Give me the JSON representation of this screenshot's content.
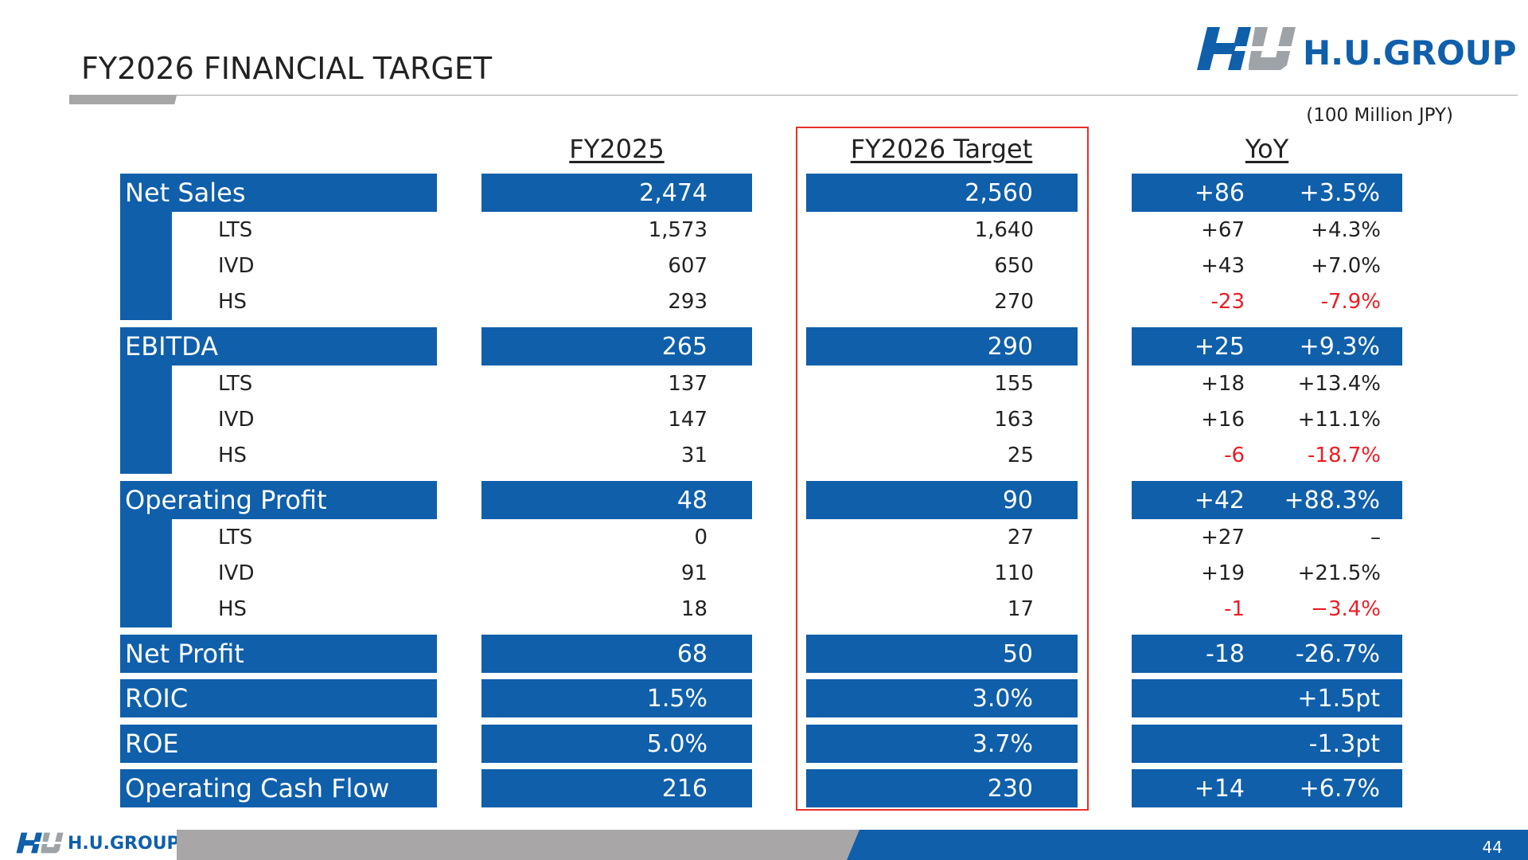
{
  "title": "FY2026 FINANCIAL TARGET",
  "logo_text": "H.U.GROUP",
  "unit_note": "(100 Million JPY)",
  "columns": {
    "fy2025": "FY2025",
    "fy2026": "FY2026 Target",
    "yoy": "YoY"
  },
  "rows": {
    "net_sales": {
      "label": "Net Sales",
      "fy2025": "2,474",
      "fy2026": "2,560",
      "yoy_abs": "+86",
      "yoy_pct": "+3.5%"
    },
    "ns_lts": {
      "label": "LTS",
      "fy2025": "1,573",
      "fy2026": "1,640",
      "yoy_abs": "+67",
      "yoy_pct": "+4.3%"
    },
    "ns_ivd": {
      "label": "IVD",
      "fy2025": "607",
      "fy2026": "650",
      "yoy_abs": "+43",
      "yoy_pct": "+7.0%"
    },
    "ns_hs": {
      "label": "HS",
      "fy2025": "293",
      "fy2026": "270",
      "yoy_abs": "-23",
      "yoy_pct": "-7.9%"
    },
    "ebitda": {
      "label": "EBITDA",
      "fy2025": "265",
      "fy2026": "290",
      "yoy_abs": "+25",
      "yoy_pct": "+9.3%"
    },
    "eb_lts": {
      "label": "LTS",
      "fy2025": "137",
      "fy2026": "155",
      "yoy_abs": "+18",
      "yoy_pct": "+13.4%"
    },
    "eb_ivd": {
      "label": "IVD",
      "fy2025": "147",
      "fy2026": "163",
      "yoy_abs": "+16",
      "yoy_pct": "+11.1%"
    },
    "eb_hs": {
      "label": "HS",
      "fy2025": "31",
      "fy2026": "25",
      "yoy_abs": "-6",
      "yoy_pct": "-18.7%"
    },
    "op_profit": {
      "label": "Operating Profit",
      "fy2025": "48",
      "fy2026": "90",
      "yoy_abs": "+42",
      "yoy_pct": "+88.3%"
    },
    "op_lts": {
      "label": "LTS",
      "fy2025": "0",
      "fy2026": "27",
      "yoy_abs": "+27",
      "yoy_pct": "–"
    },
    "op_ivd": {
      "label": "IVD",
      "fy2025": "91",
      "fy2026": "110",
      "yoy_abs": "+19",
      "yoy_pct": "+21.5%"
    },
    "op_hs": {
      "label": "HS",
      "fy2025": "18",
      "fy2026": "17",
      "yoy_abs": "-1",
      "yoy_pct": "−3.4%"
    },
    "net_profit": {
      "label": "Net Profit",
      "fy2025": "68",
      "fy2026": "50",
      "yoy_abs": "-18",
      "yoy_pct": "-26.7%"
    },
    "roic": {
      "label": "ROIC",
      "fy2025": "1.5%",
      "fy2026": "3.0%",
      "yoy_pct": "+1.5pt"
    },
    "roe": {
      "label": "ROE",
      "fy2025": "5.0%",
      "fy2026": "3.7%",
      "yoy_pct": "-1.3pt"
    },
    "ocf": {
      "label": "Operating Cash Flow",
      "fy2025": "216",
      "fy2026": "230",
      "yoy_abs": "+14",
      "yoy_pct": "+6.7%"
    }
  },
  "page_number": "44",
  "colors": {
    "brand_blue": "#0f5fab",
    "negative_red": "#ee1c25",
    "highlight_border": "#e8302a",
    "footer_grey": "#a9a6a7"
  }
}
